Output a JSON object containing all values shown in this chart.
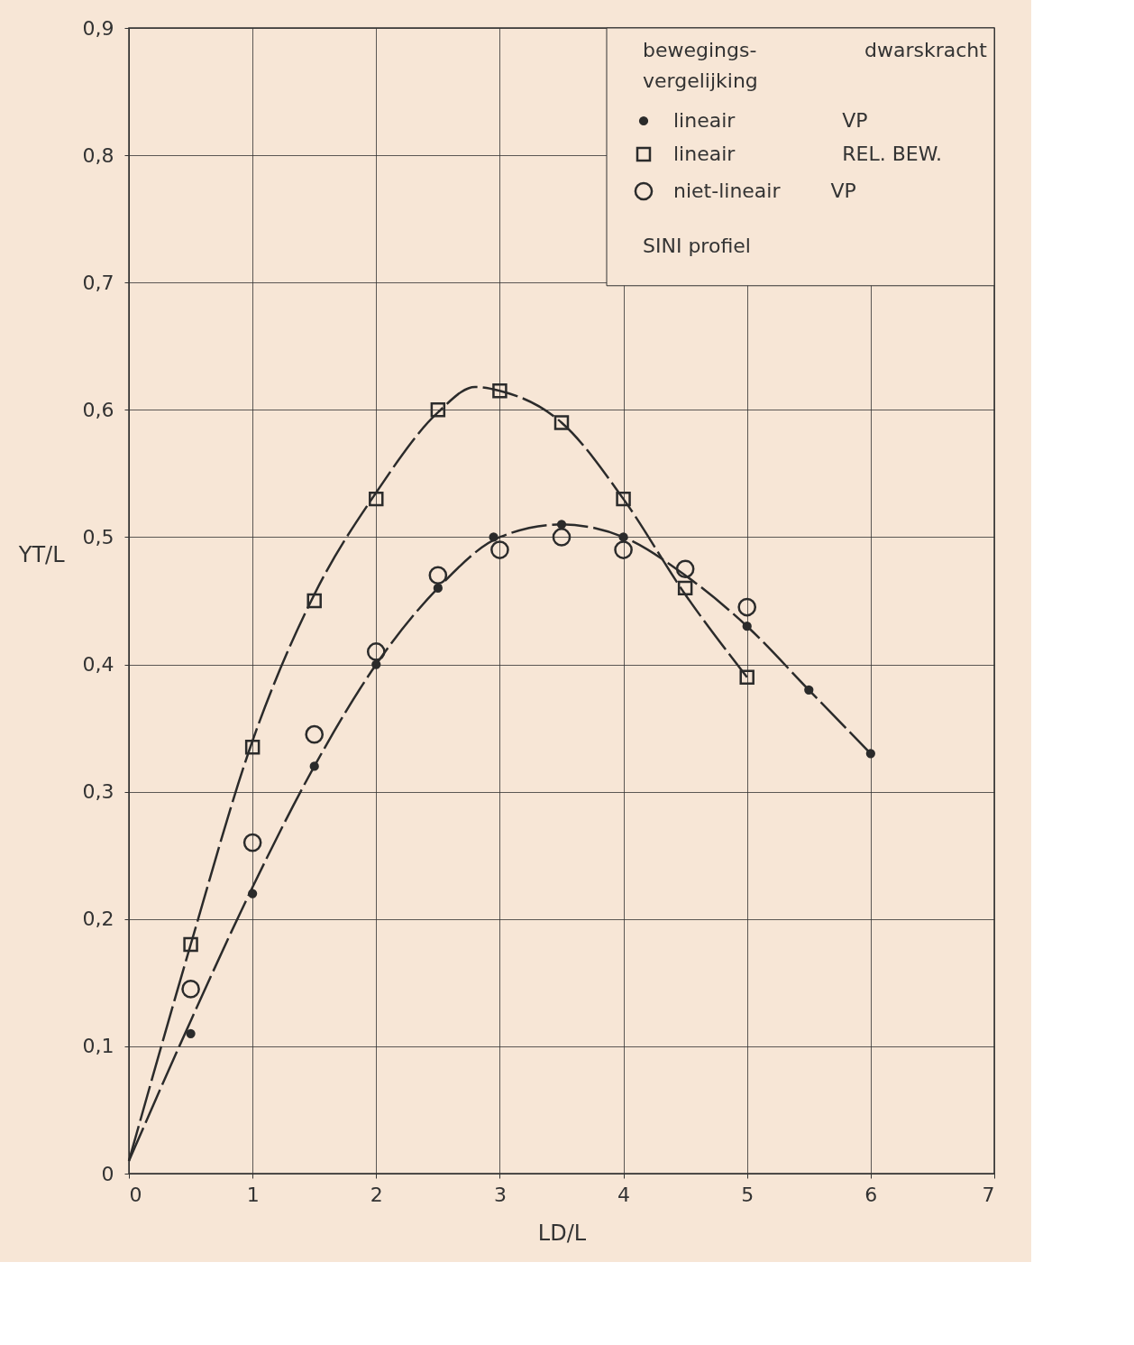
{
  "chart_data": {
    "type": "scatter",
    "xlabel": "LD/L",
    "ylabel": "YT/L",
    "legend_title": "bewegings-vergelijking\tdwarskracht",
    "xlim": [
      0,
      7
    ],
    "ylim": [
      0,
      0.9
    ],
    "xticks": [
      0,
      1,
      2,
      3,
      4,
      5,
      6,
      7
    ],
    "yticks": [
      0,
      {
        "value": 0.1,
        "label": "0,1"
      },
      {
        "value": 0.2,
        "label": "0,2"
      },
      {
        "value": 0.3,
        "label": "0,3"
      },
      {
        "value": 0.4,
        "label": "0,4"
      },
      {
        "value": 0.5,
        "label": "0,5"
      },
      {
        "value": 0.6,
        "label": "0,6"
      },
      {
        "value": 0.7,
        "label": "0,7"
      },
      {
        "value": 0.8,
        "label": "0,8"
      },
      {
        "value": 0.9,
        "label": "0,9"
      }
    ],
    "grid": true,
    "legend": "top right",
    "annotations": [
      "SINI profiel"
    ],
    "series": [
      {
        "name": "lineair\tVP",
        "marker": "circle",
        "color": "#2b2b2b",
        "x": [
          0.5,
          1,
          1.5,
          2,
          2.5,
          2.95,
          3.5,
          4,
          5,
          5.5,
          6
        ],
        "values": [
          0.11,
          0.22,
          0.32,
          0.4,
          0.46,
          0.5,
          0.51,
          0.5,
          0.43,
          0.38,
          0.33
        ]
      },
      {
        "name": "lineair\tREL. BEW.",
        "marker": "square",
        "color": "#2b2b2b",
        "x": [
          0.5,
          1,
          1.5,
          2,
          2.5,
          3,
          3.5,
          4,
          4.5,
          5
        ],
        "values": [
          0.18,
          0.335,
          0.45,
          0.53,
          0.6,
          0.615,
          0.59,
          0.53,
          0.46,
          0.39
        ]
      },
      {
        "name": "niet-lineair\tVP",
        "marker": "circle",
        "color": "#2b2b2b",
        "x": [
          0.5,
          1,
          1.5,
          2,
          2.5,
          3,
          3.5,
          4,
          4.5,
          5
        ],
        "values": [
          0.145,
          0.26,
          0.345,
          0.41,
          0.47,
          0.49,
          0.5,
          0.49,
          0.475,
          0.445
        ]
      },
      {
        "type": "line",
        "line_style": "dashed",
        "color": "#2b2b2b",
        "x": [
          0,
          0.5,
          1,
          1.5,
          2,
          2.5,
          2.8,
          3,
          3.5,
          4,
          4.5,
          5
        ],
        "values": [
          0.01,
          0.18,
          0.34,
          0.455,
          0.535,
          0.598,
          0.618,
          0.615,
          0.59,
          0.53,
          0.455,
          0.39
        ]
      },
      {
        "type": "line",
        "line_style": "dashed",
        "color": "#2b2b2b",
        "x": [
          0,
          0.5,
          1,
          1.5,
          2,
          2.5,
          3,
          3.5,
          4,
          4.5,
          5,
          5.5,
          6
        ],
        "values": [
          0.01,
          0.12,
          0.225,
          0.32,
          0.4,
          0.46,
          0.5,
          0.51,
          0.5,
          0.47,
          0.43,
          0.38,
          0.33
        ]
      }
    ]
  }
}
